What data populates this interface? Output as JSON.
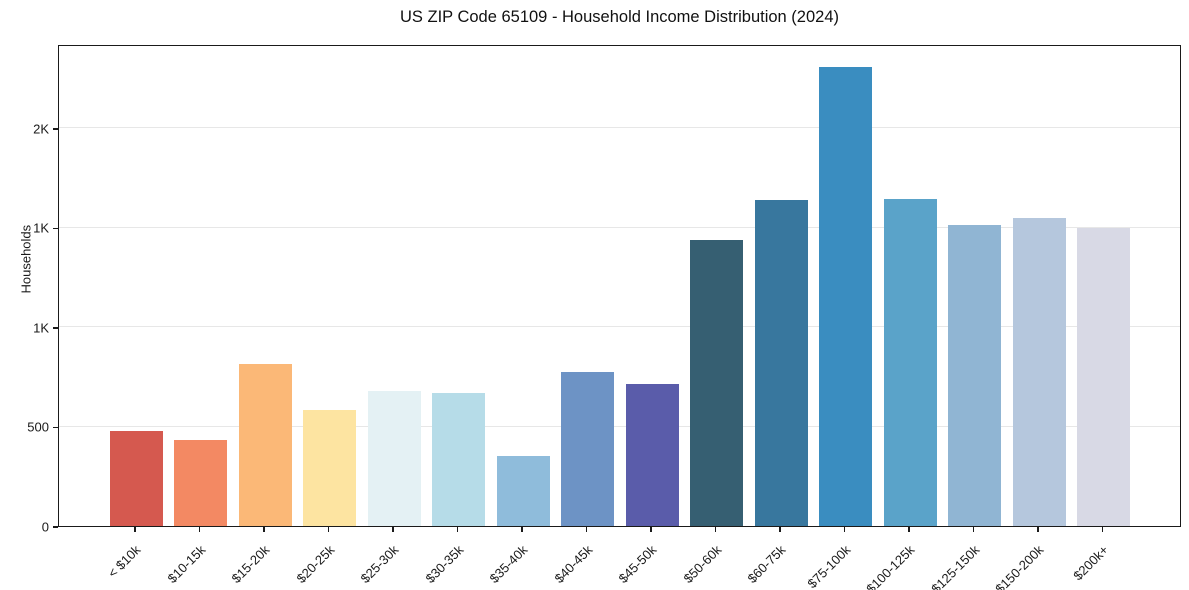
{
  "figure": {
    "background": "#ffffff",
    "title": "US ZIP Code 65109 - Household Income Distribution (2024)"
  },
  "chart_data": {
    "type": "bar",
    "title": "US ZIP Code 65109 - Household Income Distribution (2024)",
    "xlabel": "",
    "ylabel": "Households",
    "categories": [
      "< $10k",
      "$10-15k",
      "$15-20k",
      "$20-25k",
      "$25-30k",
      "$30-35k",
      "$35-40k",
      "$40-45k",
      "$45-50k",
      "$50-60k",
      "$60-75k",
      "$75-100k",
      "$100-125k",
      "$125-150k",
      "$150-200k",
      "$200k+"
    ],
    "values": [
      478,
      434,
      814,
      581,
      676,
      666,
      352,
      774,
      716,
      1439,
      1640,
      2307,
      1645,
      1511,
      1546,
      1499
    ],
    "bar_colors": [
      "#d5594f",
      "#f38963",
      "#fbb877",
      "#fde4a1",
      "#e4f1f4",
      "#b6dce8",
      "#8fbcdb",
      "#6d93c5",
      "#5a5caa",
      "#365f72",
      "#38779e",
      "#3a8dc0",
      "#5aa3c9",
      "#90b5d3",
      "#b5c7dd",
      "#d8d9e5"
    ],
    "ylim": [
      0,
      2422
    ],
    "yticks": {
      "values": [
        0,
        500,
        1000,
        1500,
        2000
      ],
      "labels": [
        "0",
        "500",
        "1K",
        "1K",
        "2K"
      ]
    },
    "grid": "horizontal",
    "grid_color": "#e7e7e7",
    "spine_color": "#1a1a1a",
    "legend": "none"
  }
}
